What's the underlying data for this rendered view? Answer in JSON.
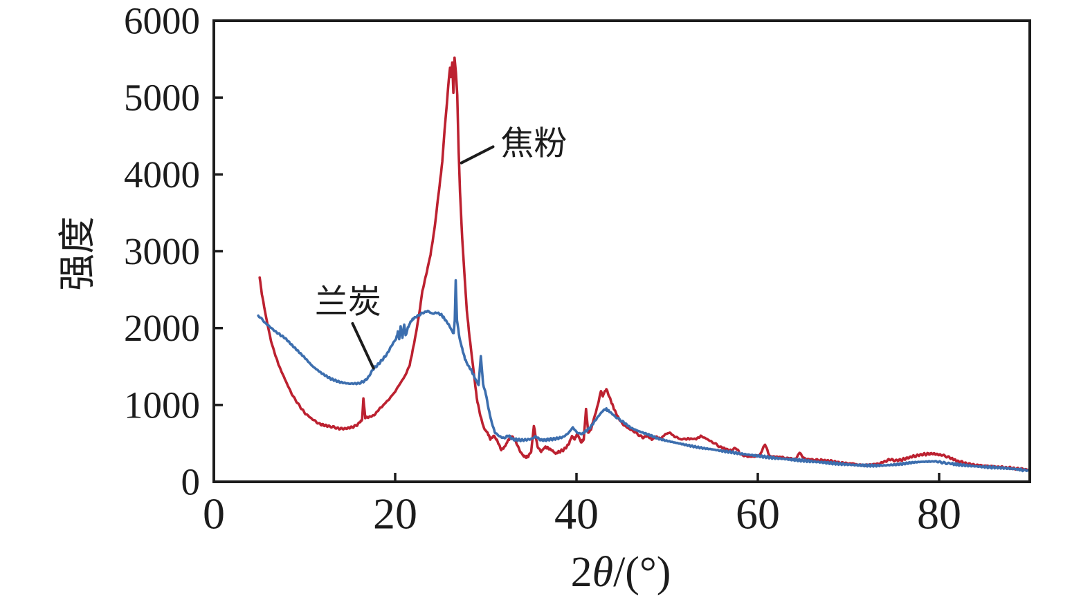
{
  "figure": {
    "background": "#ffffff",
    "axis_color": "#1c1c1c",
    "text_color": "#1c1c1c"
  },
  "chart_data": {
    "type": "line",
    "title": "",
    "xlabel": "2θ/(°)",
    "xlabel_parts": [
      {
        "t": "2",
        "italic": false
      },
      {
        "t": "θ",
        "italic": true
      },
      {
        "t": "/(°)",
        "italic": false
      }
    ],
    "ylabel": "强度",
    "xlim": [
      0,
      90
    ],
    "ylim": [
      0,
      6000
    ],
    "xticks": [
      0,
      20,
      40,
      60,
      80
    ],
    "yticks": [
      0,
      1000,
      2000,
      3000,
      4000,
      5000,
      6000
    ],
    "grid": false,
    "legend": "inline annotations with leader lines",
    "noise": {
      "amplitude": 16
    },
    "series": [
      {
        "name": "焦粉",
        "color": "#bc2130",
        "seed": 3.1,
        "points": [
          [
            5.05,
            2660
          ],
          [
            5.3,
            2445
          ],
          [
            5.7,
            2180
          ],
          [
            5.95,
            2030
          ],
          [
            6.3,
            1835
          ],
          [
            6.8,
            1640
          ],
          [
            7.3,
            1475
          ],
          [
            8,
            1295
          ],
          [
            8.6,
            1140
          ],
          [
            9.4,
            995
          ],
          [
            10.1,
            890
          ],
          [
            10.9,
            815
          ],
          [
            11.7,
            750
          ],
          [
            12.7,
            722
          ],
          [
            13.5,
            700
          ],
          [
            14.1,
            690
          ],
          [
            14.7,
            697
          ],
          [
            15.2,
            710
          ],
          [
            15.8,
            737
          ],
          [
            16.15,
            783
          ],
          [
            16.35,
            810
          ],
          [
            16.5,
            1085
          ],
          [
            16.7,
            833
          ],
          [
            17.2,
            845
          ],
          [
            17.7,
            868
          ],
          [
            18.2,
            940
          ],
          [
            18.8,
            1010
          ],
          [
            19.4,
            1085
          ],
          [
            20,
            1175
          ],
          [
            20.6,
            1290
          ],
          [
            21.1,
            1380
          ],
          [
            21.6,
            1520
          ],
          [
            22,
            1750
          ],
          [
            22.3,
            1935
          ],
          [
            22.65,
            2185
          ],
          [
            23,
            2480
          ],
          [
            23.5,
            2740
          ],
          [
            23.9,
            2955
          ],
          [
            24.3,
            3260
          ],
          [
            24.65,
            3610
          ],
          [
            24.9,
            3860
          ],
          [
            25.2,
            4165
          ],
          [
            25.45,
            4580
          ],
          [
            25.7,
            4915
          ],
          [
            25.9,
            5215
          ],
          [
            26.05,
            5390
          ],
          [
            26.15,
            5270
          ],
          [
            26.3,
            5455
          ],
          [
            26.42,
            5060
          ],
          [
            26.55,
            5520
          ],
          [
            26.7,
            5320
          ],
          [
            26.85,
            5030
          ],
          [
            27,
            4310
          ],
          [
            27.15,
            3770
          ],
          [
            27.4,
            3165
          ],
          [
            27.65,
            2690
          ],
          [
            27.9,
            2230
          ],
          [
            28.2,
            1890
          ],
          [
            28.6,
            1490
          ],
          [
            29,
            1090
          ],
          [
            29.4,
            860
          ],
          [
            29.8,
            695
          ],
          [
            30.2,
            635
          ],
          [
            30.5,
            555
          ],
          [
            30.9,
            600
          ],
          [
            31.3,
            525
          ],
          [
            31.7,
            415
          ],
          [
            32.1,
            458
          ],
          [
            32.5,
            550
          ],
          [
            32.9,
            590
          ],
          [
            33.3,
            525
          ],
          [
            33.8,
            392
          ],
          [
            34.2,
            330
          ],
          [
            34.6,
            320
          ],
          [
            35,
            392
          ],
          [
            35.3,
            725
          ],
          [
            35.7,
            458
          ],
          [
            36.1,
            392
          ],
          [
            36.5,
            450
          ],
          [
            36.9,
            436
          ],
          [
            37.3,
            410
          ],
          [
            37.7,
            367
          ],
          [
            38.1,
            392
          ],
          [
            38.6,
            418
          ],
          [
            39.1,
            480
          ],
          [
            39.5,
            595
          ],
          [
            39.8,
            552
          ],
          [
            40.1,
            630
          ],
          [
            40.5,
            512
          ],
          [
            40.8,
            552
          ],
          [
            41.05,
            950
          ],
          [
            41.3,
            638
          ],
          [
            41.6,
            682
          ],
          [
            41.9,
            815
          ],
          [
            42.2,
            930
          ],
          [
            42.45,
            1052
          ],
          [
            42.7,
            1185
          ],
          [
            42.9,
            1115
          ],
          [
            43.1,
            1175
          ],
          [
            43.3,
            1205
          ],
          [
            43.55,
            1130
          ],
          [
            43.8,
            1052
          ],
          [
            44.2,
            932
          ],
          [
            44.7,
            815
          ],
          [
            45.2,
            737
          ],
          [
            45.8,
            692
          ],
          [
            46.5,
            638
          ],
          [
            47.3,
            572
          ],
          [
            47.8,
            600
          ],
          [
            48.3,
            552
          ],
          [
            48.8,
            585
          ],
          [
            49.3,
            562
          ],
          [
            49.8,
            620
          ],
          [
            50.3,
            640
          ],
          [
            50.8,
            588
          ],
          [
            51.5,
            552
          ],
          [
            52.3,
            560
          ],
          [
            53.2,
            558
          ],
          [
            53.7,
            592
          ],
          [
            54.4,
            558
          ],
          [
            55,
            512
          ],
          [
            55.9,
            452
          ],
          [
            56.9,
            407
          ],
          [
            57.6,
            437
          ],
          [
            58.2,
            347
          ],
          [
            58.9,
            327
          ],
          [
            59.6,
            332
          ],
          [
            60.2,
            342
          ],
          [
            60.8,
            490
          ],
          [
            61.3,
            332
          ],
          [
            61.8,
            327
          ],
          [
            62.7,
            317
          ],
          [
            63.6,
            302
          ],
          [
            64.2,
            297
          ],
          [
            64.6,
            382
          ],
          [
            65.1,
            302
          ],
          [
            65.9,
            287
          ],
          [
            66.8,
            282
          ],
          [
            67.9,
            272
          ],
          [
            69.1,
            247
          ],
          [
            70.4,
            237
          ],
          [
            71.7,
            212
          ],
          [
            72.7,
            227
          ],
          [
            73.4,
            237
          ],
          [
            74.6,
            292
          ],
          [
            75.3,
            277
          ],
          [
            75.9,
            287
          ],
          [
            77,
            327
          ],
          [
            78.2,
            357
          ],
          [
            79.3,
            367
          ],
          [
            80.3,
            347
          ],
          [
            81.1,
            317
          ],
          [
            82.1,
            267
          ],
          [
            83.4,
            227
          ],
          [
            84.7,
            212
          ],
          [
            85.9,
            202
          ],
          [
            87.2,
            187
          ],
          [
            88.5,
            172
          ],
          [
            89.9,
            157
          ]
        ]
      },
      {
        "name": "兰炭",
        "color": "#3c6eae",
        "seed": 7.7,
        "points": [
          [
            4.9,
            2165
          ],
          [
            5.8,
            2055
          ],
          [
            6.8,
            1955
          ],
          [
            7.9,
            1865
          ],
          [
            8.9,
            1745
          ],
          [
            9.9,
            1630
          ],
          [
            10.9,
            1502
          ],
          [
            11.9,
            1412
          ],
          [
            12.9,
            1340
          ],
          [
            13.9,
            1297
          ],
          [
            14.9,
            1277
          ],
          [
            15.9,
            1280
          ],
          [
            16.5,
            1302
          ],
          [
            17,
            1352
          ],
          [
            17.6,
            1472
          ],
          [
            18.1,
            1525
          ],
          [
            18.6,
            1592
          ],
          [
            19.1,
            1662
          ],
          [
            19.6,
            1772
          ],
          [
            20.1,
            1862
          ],
          [
            20.3,
            1950
          ],
          [
            20.45,
            1857
          ],
          [
            20.6,
            2020
          ],
          [
            20.8,
            1877
          ],
          [
            21,
            2050
          ],
          [
            21.15,
            1907
          ],
          [
            21.4,
            2000
          ],
          [
            21.7,
            2082
          ],
          [
            22,
            2122
          ],
          [
            22.5,
            2162
          ],
          [
            23.1,
            2200
          ],
          [
            23.6,
            2222
          ],
          [
            24.1,
            2187
          ],
          [
            24.6,
            2202
          ],
          [
            25.1,
            2172
          ],
          [
            25.5,
            2112
          ],
          [
            25.9,
            2047
          ],
          [
            26.3,
            1957
          ],
          [
            26.45,
            1932
          ],
          [
            26.57,
            2102
          ],
          [
            26.68,
            2622
          ],
          [
            26.82,
            2102
          ],
          [
            27.1,
            1867
          ],
          [
            27.4,
            1730
          ],
          [
            27.7,
            1600
          ],
          [
            28,
            1522
          ],
          [
            28.4,
            1452
          ],
          [
            28.8,
            1347
          ],
          [
            29.2,
            1262
          ],
          [
            29.45,
            1637
          ],
          [
            29.7,
            1267
          ],
          [
            30,
            1147
          ],
          [
            30.3,
            952
          ],
          [
            30.6,
            792
          ],
          [
            31,
            642
          ],
          [
            31.5,
            592
          ],
          [
            32,
            567
          ],
          [
            32.5,
            602
          ],
          [
            33,
            552
          ],
          [
            33.5,
            547
          ],
          [
            34,
            542
          ],
          [
            34.5,
            547
          ],
          [
            35,
            557
          ],
          [
            35.5,
            590
          ],
          [
            36,
            547
          ],
          [
            36.5,
            542
          ],
          [
            37,
            552
          ],
          [
            37.5,
            557
          ],
          [
            38,
            567
          ],
          [
            38.5,
            582
          ],
          [
            39,
            622
          ],
          [
            39.6,
            705
          ],
          [
            40.1,
            637
          ],
          [
            40.6,
            622
          ],
          [
            41,
            657
          ],
          [
            41.5,
            705
          ],
          [
            42,
            787
          ],
          [
            42.5,
            867
          ],
          [
            43,
            935
          ],
          [
            43.3,
            945
          ],
          [
            43.7,
            907
          ],
          [
            44.2,
            857
          ],
          [
            45,
            792
          ],
          [
            46,
            702
          ],
          [
            47,
            652
          ],
          [
            48,
            612
          ],
          [
            49,
            562
          ],
          [
            50,
            532
          ],
          [
            51,
            507
          ],
          [
            52,
            482
          ],
          [
            53,
            457
          ],
          [
            54,
            437
          ],
          [
            55,
            422
          ],
          [
            56,
            402
          ],
          [
            57,
            387
          ],
          [
            58,
            367
          ],
          [
            59,
            352
          ],
          [
            60,
            337
          ],
          [
            61,
            322
          ],
          [
            62,
            307
          ],
          [
            63,
            297
          ],
          [
            64,
            287
          ],
          [
            65,
            277
          ],
          [
            66,
            264
          ],
          [
            67,
            254
          ],
          [
            68,
            244
          ],
          [
            69,
            234
          ],
          [
            70,
            224
          ],
          [
            71,
            217
          ],
          [
            72,
            212
          ],
          [
            73,
            210
          ],
          [
            74,
            214
          ],
          [
            75,
            222
          ],
          [
            76,
            234
          ],
          [
            77,
            250
          ],
          [
            78,
            260
          ],
          [
            79,
            264
          ],
          [
            79.8,
            260
          ],
          [
            80.5,
            250
          ],
          [
            81.3,
            237
          ],
          [
            82.2,
            222
          ],
          [
            83.2,
            210
          ],
          [
            84.2,
            200
          ],
          [
            85.2,
            192
          ],
          [
            86.3,
            185
          ],
          [
            87.3,
            177
          ],
          [
            88.3,
            167
          ],
          [
            89.2,
            154
          ],
          [
            89.9,
            144
          ]
        ]
      }
    ],
    "annotations": [
      {
        "text": "焦粉",
        "series": "焦粉",
        "text_pos": [
          35.3,
          4400
        ],
        "leader_line": [
          [
            27.3,
            4150
          ],
          [
            30.8,
            4360
          ]
        ]
      },
      {
        "text": "兰炭",
        "series": "兰炭",
        "text_pos": [
          14.8,
          2340
        ],
        "leader_line": [
          [
            15.3,
            2060
          ],
          [
            17.6,
            1480
          ]
        ]
      }
    ]
  }
}
